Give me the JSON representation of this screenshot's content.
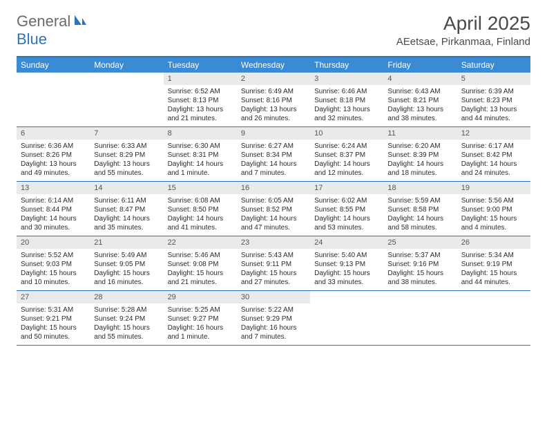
{
  "brand": {
    "part1": "General",
    "part2": "Blue"
  },
  "title": "April 2025",
  "location": "AEetsae, Pirkanmaa, Finland",
  "colors": {
    "accent": "#2a74bb",
    "header_bg": "#3b8bd4",
    "daynum_bg": "#e9eaeb",
    "text": "#2b2b2b",
    "title_text": "#4a4a4a"
  },
  "day_headers": [
    "Sunday",
    "Monday",
    "Tuesday",
    "Wednesday",
    "Thursday",
    "Friday",
    "Saturday"
  ],
  "weeks": [
    [
      {
        "n": "",
        "sr": "",
        "ss": "",
        "dl": ""
      },
      {
        "n": "",
        "sr": "",
        "ss": "",
        "dl": ""
      },
      {
        "n": "1",
        "sr": "Sunrise: 6:52 AM",
        "ss": "Sunset: 8:13 PM",
        "dl": "Daylight: 13 hours and 21 minutes."
      },
      {
        "n": "2",
        "sr": "Sunrise: 6:49 AM",
        "ss": "Sunset: 8:16 PM",
        "dl": "Daylight: 13 hours and 26 minutes."
      },
      {
        "n": "3",
        "sr": "Sunrise: 6:46 AM",
        "ss": "Sunset: 8:18 PM",
        "dl": "Daylight: 13 hours and 32 minutes."
      },
      {
        "n": "4",
        "sr": "Sunrise: 6:43 AM",
        "ss": "Sunset: 8:21 PM",
        "dl": "Daylight: 13 hours and 38 minutes."
      },
      {
        "n": "5",
        "sr": "Sunrise: 6:39 AM",
        "ss": "Sunset: 8:23 PM",
        "dl": "Daylight: 13 hours and 44 minutes."
      }
    ],
    [
      {
        "n": "6",
        "sr": "Sunrise: 6:36 AM",
        "ss": "Sunset: 8:26 PM",
        "dl": "Daylight: 13 hours and 49 minutes."
      },
      {
        "n": "7",
        "sr": "Sunrise: 6:33 AM",
        "ss": "Sunset: 8:29 PM",
        "dl": "Daylight: 13 hours and 55 minutes."
      },
      {
        "n": "8",
        "sr": "Sunrise: 6:30 AM",
        "ss": "Sunset: 8:31 PM",
        "dl": "Daylight: 14 hours and 1 minute."
      },
      {
        "n": "9",
        "sr": "Sunrise: 6:27 AM",
        "ss": "Sunset: 8:34 PM",
        "dl": "Daylight: 14 hours and 7 minutes."
      },
      {
        "n": "10",
        "sr": "Sunrise: 6:24 AM",
        "ss": "Sunset: 8:37 PM",
        "dl": "Daylight: 14 hours and 12 minutes."
      },
      {
        "n": "11",
        "sr": "Sunrise: 6:20 AM",
        "ss": "Sunset: 8:39 PM",
        "dl": "Daylight: 14 hours and 18 minutes."
      },
      {
        "n": "12",
        "sr": "Sunrise: 6:17 AM",
        "ss": "Sunset: 8:42 PM",
        "dl": "Daylight: 14 hours and 24 minutes."
      }
    ],
    [
      {
        "n": "13",
        "sr": "Sunrise: 6:14 AM",
        "ss": "Sunset: 8:44 PM",
        "dl": "Daylight: 14 hours and 30 minutes."
      },
      {
        "n": "14",
        "sr": "Sunrise: 6:11 AM",
        "ss": "Sunset: 8:47 PM",
        "dl": "Daylight: 14 hours and 35 minutes."
      },
      {
        "n": "15",
        "sr": "Sunrise: 6:08 AM",
        "ss": "Sunset: 8:50 PM",
        "dl": "Daylight: 14 hours and 41 minutes."
      },
      {
        "n": "16",
        "sr": "Sunrise: 6:05 AM",
        "ss": "Sunset: 8:52 PM",
        "dl": "Daylight: 14 hours and 47 minutes."
      },
      {
        "n": "17",
        "sr": "Sunrise: 6:02 AM",
        "ss": "Sunset: 8:55 PM",
        "dl": "Daylight: 14 hours and 53 minutes."
      },
      {
        "n": "18",
        "sr": "Sunrise: 5:59 AM",
        "ss": "Sunset: 8:58 PM",
        "dl": "Daylight: 14 hours and 58 minutes."
      },
      {
        "n": "19",
        "sr": "Sunrise: 5:56 AM",
        "ss": "Sunset: 9:00 PM",
        "dl": "Daylight: 15 hours and 4 minutes."
      }
    ],
    [
      {
        "n": "20",
        "sr": "Sunrise: 5:52 AM",
        "ss": "Sunset: 9:03 PM",
        "dl": "Daylight: 15 hours and 10 minutes."
      },
      {
        "n": "21",
        "sr": "Sunrise: 5:49 AM",
        "ss": "Sunset: 9:05 PM",
        "dl": "Daylight: 15 hours and 16 minutes."
      },
      {
        "n": "22",
        "sr": "Sunrise: 5:46 AM",
        "ss": "Sunset: 9:08 PM",
        "dl": "Daylight: 15 hours and 21 minutes."
      },
      {
        "n": "23",
        "sr": "Sunrise: 5:43 AM",
        "ss": "Sunset: 9:11 PM",
        "dl": "Daylight: 15 hours and 27 minutes."
      },
      {
        "n": "24",
        "sr": "Sunrise: 5:40 AM",
        "ss": "Sunset: 9:13 PM",
        "dl": "Daylight: 15 hours and 33 minutes."
      },
      {
        "n": "25",
        "sr": "Sunrise: 5:37 AM",
        "ss": "Sunset: 9:16 PM",
        "dl": "Daylight: 15 hours and 38 minutes."
      },
      {
        "n": "26",
        "sr": "Sunrise: 5:34 AM",
        "ss": "Sunset: 9:19 PM",
        "dl": "Daylight: 15 hours and 44 minutes."
      }
    ],
    [
      {
        "n": "27",
        "sr": "Sunrise: 5:31 AM",
        "ss": "Sunset: 9:21 PM",
        "dl": "Daylight: 15 hours and 50 minutes."
      },
      {
        "n": "28",
        "sr": "Sunrise: 5:28 AM",
        "ss": "Sunset: 9:24 PM",
        "dl": "Daylight: 15 hours and 55 minutes."
      },
      {
        "n": "29",
        "sr": "Sunrise: 5:25 AM",
        "ss": "Sunset: 9:27 PM",
        "dl": "Daylight: 16 hours and 1 minute."
      },
      {
        "n": "30",
        "sr": "Sunrise: 5:22 AM",
        "ss": "Sunset: 9:29 PM",
        "dl": "Daylight: 16 hours and 7 minutes."
      },
      {
        "n": "",
        "sr": "",
        "ss": "",
        "dl": ""
      },
      {
        "n": "",
        "sr": "",
        "ss": "",
        "dl": ""
      },
      {
        "n": "",
        "sr": "",
        "ss": "",
        "dl": ""
      }
    ]
  ]
}
